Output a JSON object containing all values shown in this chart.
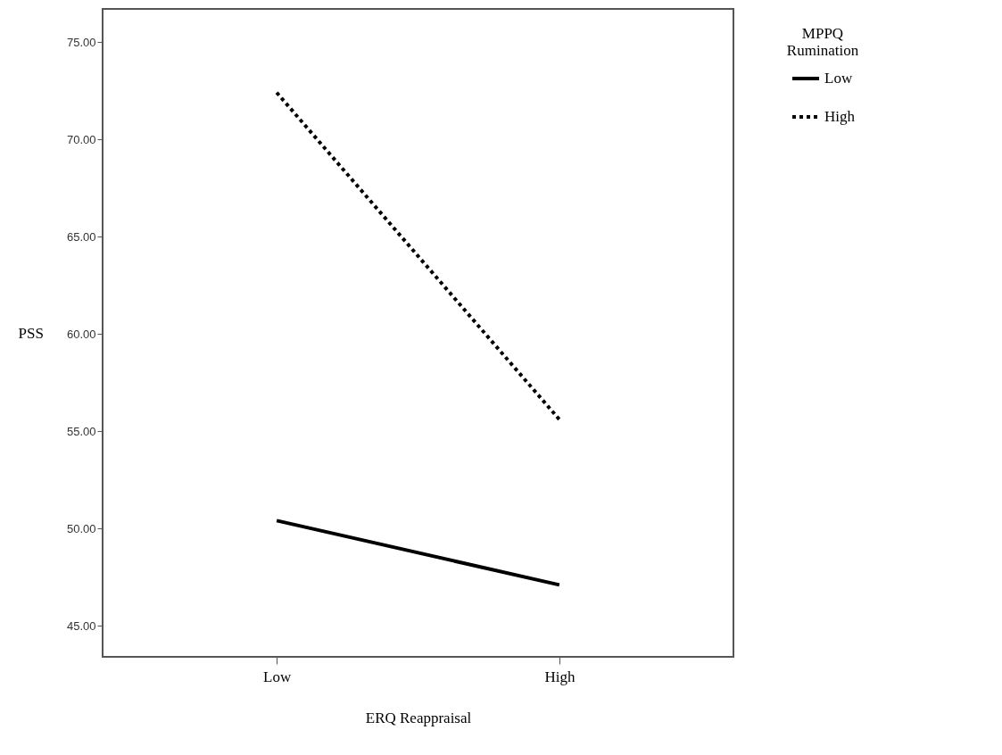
{
  "chart_data": {
    "type": "line",
    "xlabel": "ERQ Reappraisal",
    "ylabel": "PSS",
    "legend_title": "MPPQ Rumination",
    "categories": [
      "Low",
      "High"
    ],
    "series": [
      {
        "name": "Low",
        "color": "#000000",
        "line_style": "solid",
        "values": [
          50.4,
          47.1
        ]
      },
      {
        "name": "High",
        "color": "#000000",
        "line_style": "dotted",
        "values": [
          72.4,
          55.6
        ]
      }
    ],
    "ylim": [
      43.4,
      76.7
    ],
    "yticks": [
      {
        "value": 45,
        "label": "45.00"
      },
      {
        "value": 50,
        "label": "50.00"
      },
      {
        "value": 55,
        "label": "55.00"
      },
      {
        "value": 60,
        "label": "60.00"
      },
      {
        "value": 65,
        "label": "65.00"
      },
      {
        "value": 70,
        "label": "70.00"
      },
      {
        "value": 75,
        "label": "75.00"
      }
    ],
    "grid": false,
    "legend": "top right",
    "marker": "none"
  }
}
